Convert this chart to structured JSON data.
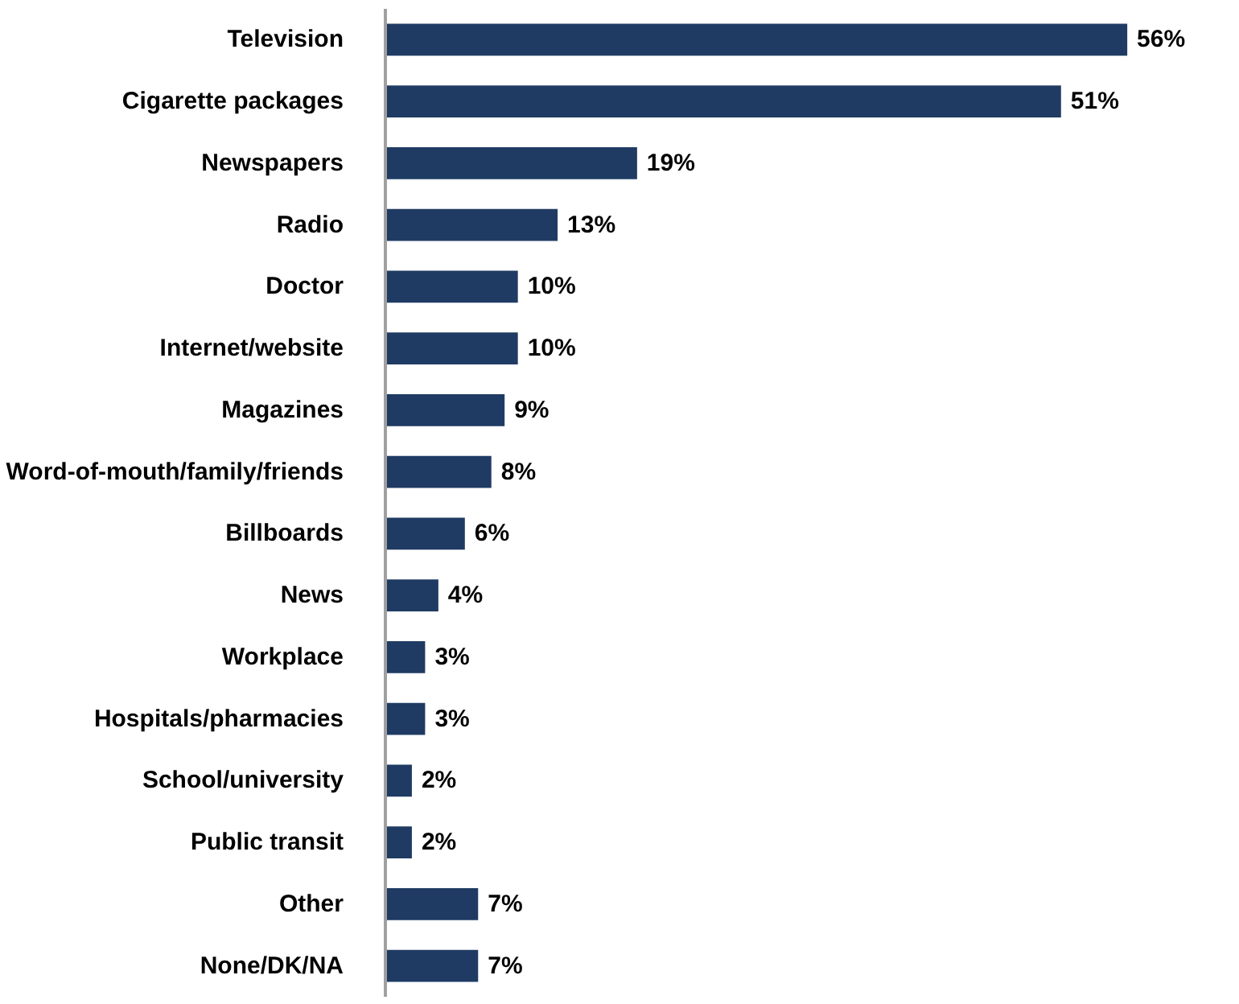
{
  "chart_data": {
    "type": "bar",
    "orientation": "horizontal",
    "color": "#1f3b63",
    "categories": [
      "Television",
      "Cigarette packages",
      "Newspapers",
      "Radio",
      "Doctor",
      "Internet/website",
      "Magazines",
      "Word-of-mouth/family/friends",
      "Billboards",
      "News",
      "Workplace",
      "Hospitals/pharmacies",
      "School/university",
      "Public transit",
      "Other",
      "None/DK/NA"
    ],
    "values": [
      56,
      51,
      19,
      13,
      10,
      10,
      9,
      8,
      6,
      4,
      3,
      3,
      2,
      2,
      7,
      7
    ],
    "value_labels": [
      "56%",
      "51%",
      "19%",
      "13%",
      "10%",
      "10%",
      "9%",
      "8%",
      "6%",
      "4%",
      "3%",
      "3%",
      "2%",
      "2%",
      "7%",
      "7%"
    ]
  }
}
